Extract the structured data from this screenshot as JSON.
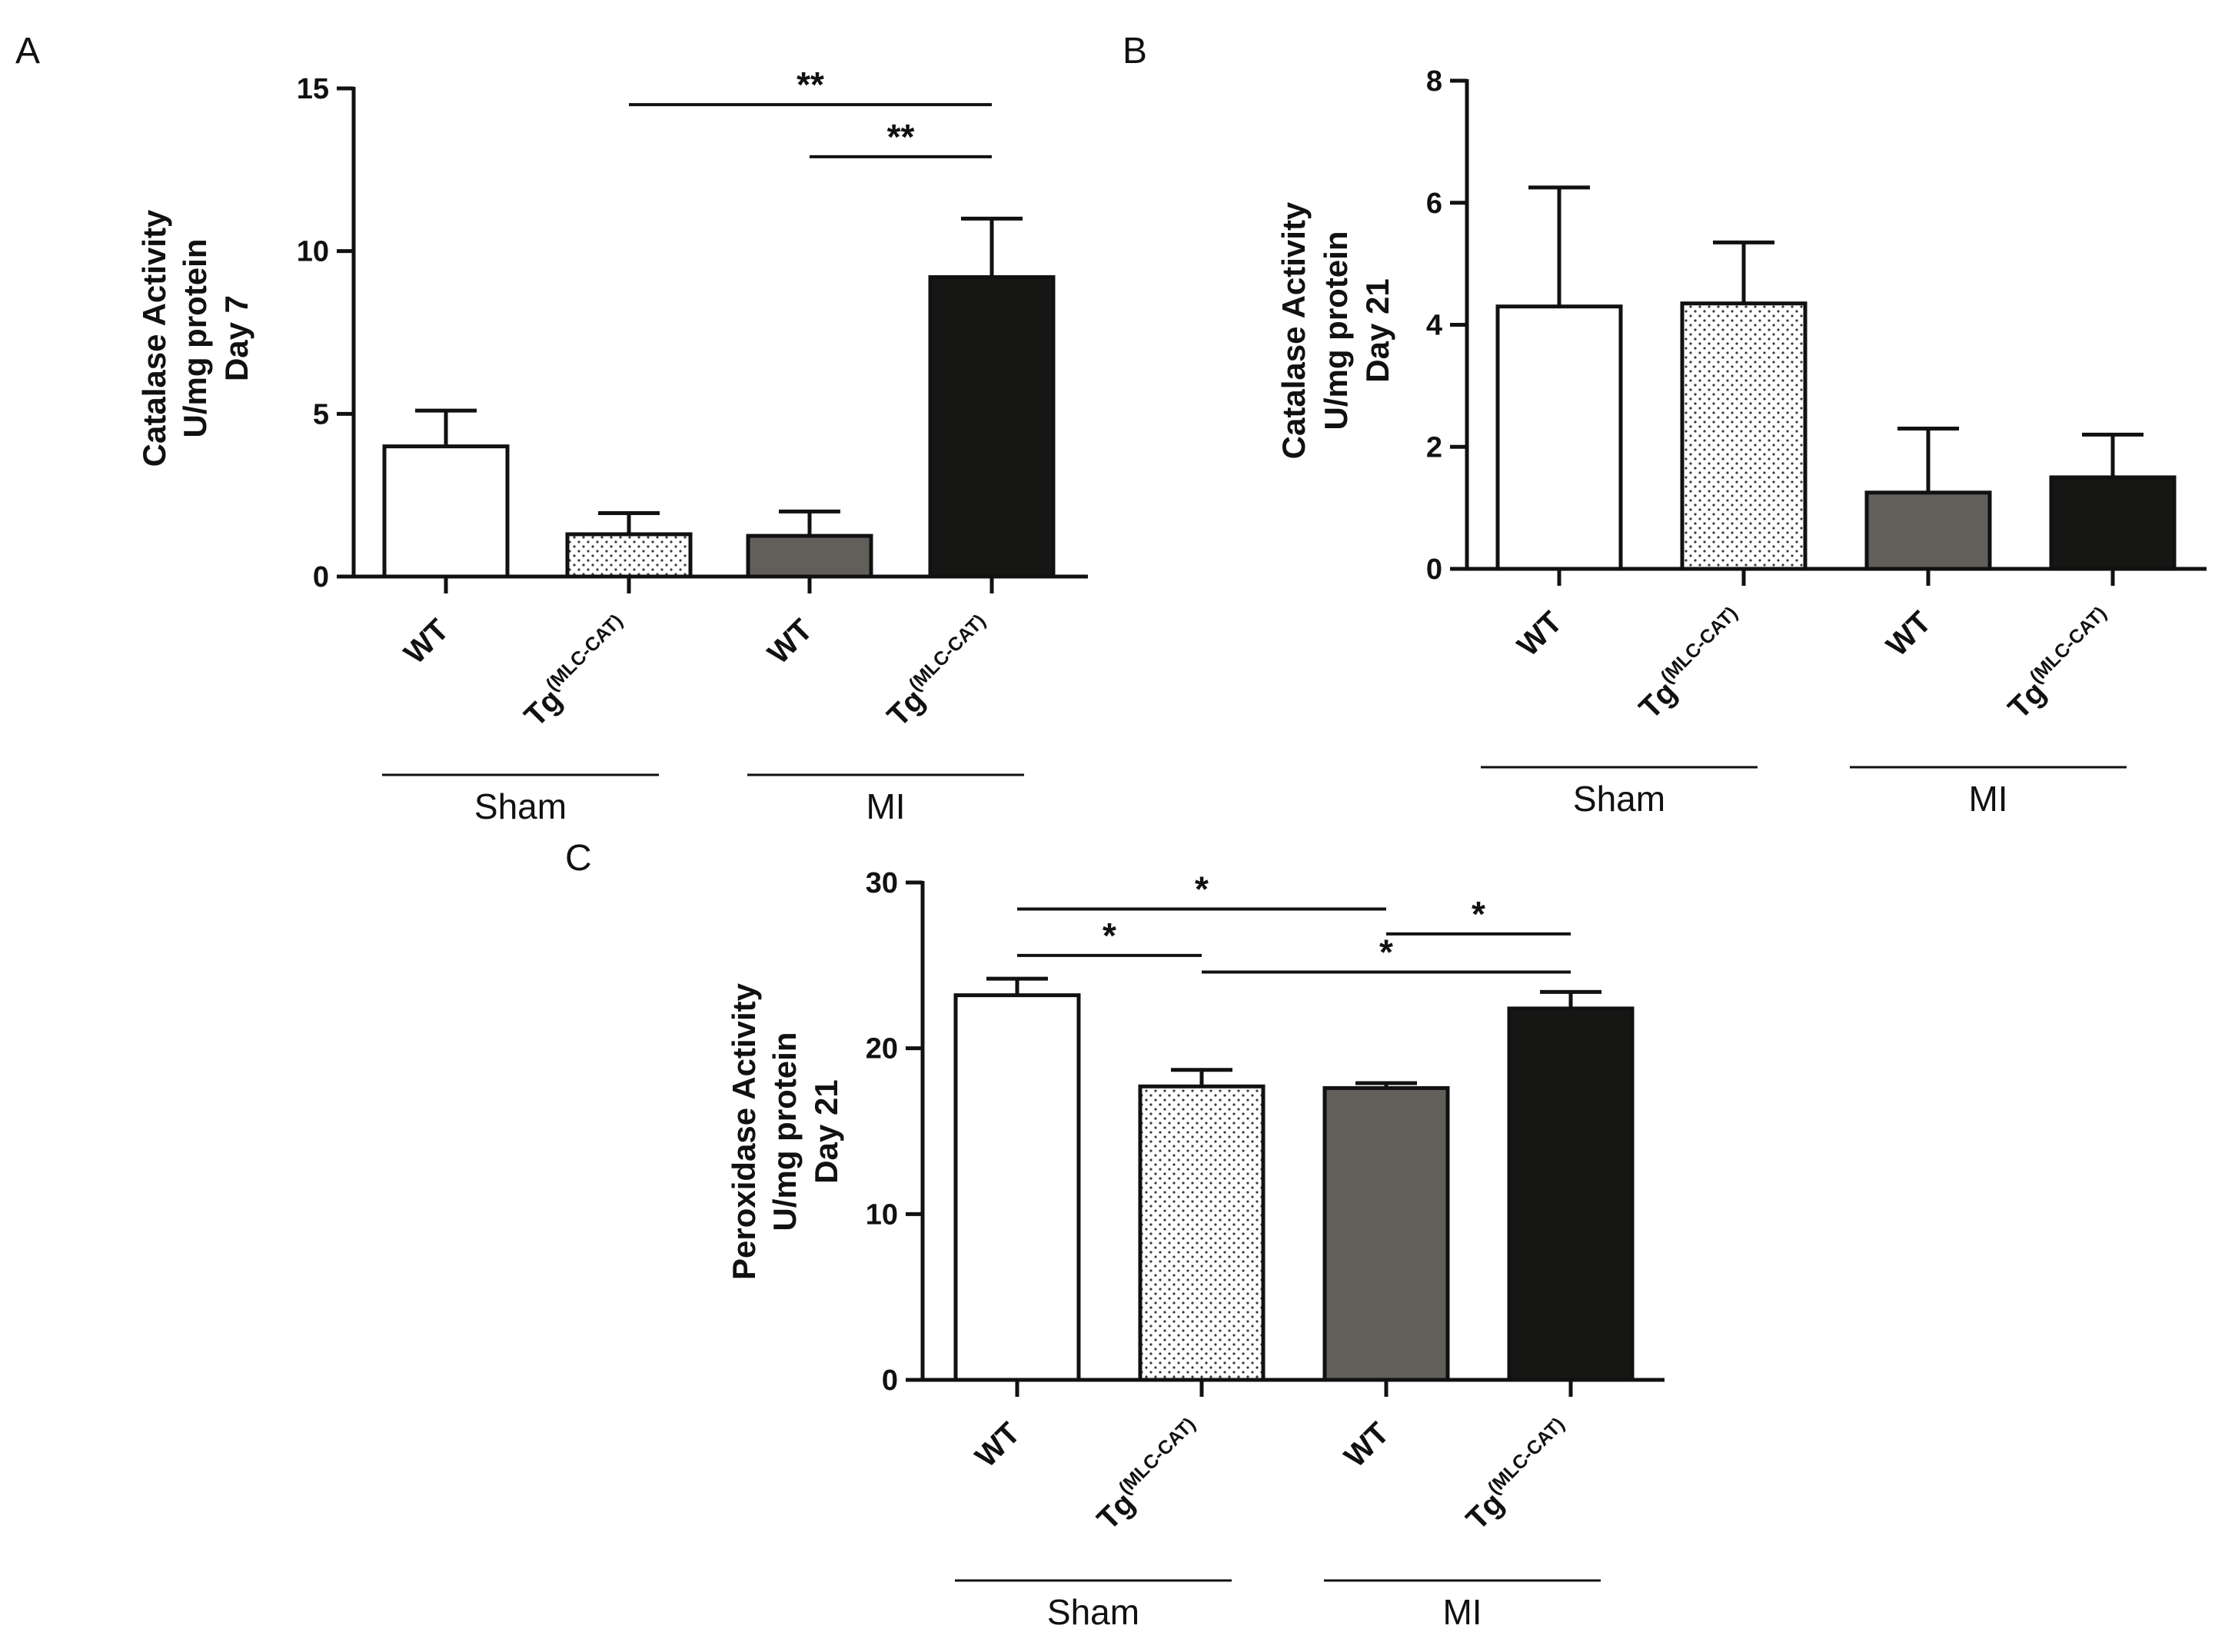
{
  "figure": {
    "colors": {
      "wt_sham": "#ffffff",
      "tg_sham": "#ffffff",
      "wt_mi": "#625e5a",
      "tg_mi": "#161614",
      "axis": "#111111",
      "dots": "#3a3a3a"
    }
  },
  "chart_data": [
    {
      "panel": "A",
      "type": "bar",
      "ylabel_lines": [
        "Catalase Activity",
        "U/mg protein",
        "Day 7"
      ],
      "ylim": [
        0,
        15
      ],
      "yticks": [
        0,
        5,
        10,
        15
      ],
      "categories": [
        {
          "name": "WT",
          "sup": ""
        },
        {
          "name": "Tg",
          "sup": "(MLC-CAT)"
        },
        {
          "name": "WT",
          "sup": ""
        },
        {
          "name": "Tg",
          "sup": "(MLC-CAT)"
        }
      ],
      "values": [
        4.0,
        1.3,
        1.25,
        9.2
      ],
      "errors": [
        1.1,
        0.65,
        0.75,
        1.8
      ],
      "fills": [
        "white",
        "dotted",
        "dark",
        "black"
      ],
      "groups": [
        {
          "label": "Sham",
          "from": 0,
          "to": 1
        },
        {
          "label": "MI",
          "from": 2,
          "to": 3
        }
      ],
      "significance": [
        {
          "from": 1,
          "to": 3,
          "label": "**",
          "y": 14.5
        },
        {
          "from": 2,
          "to": 3,
          "label": "**",
          "y": 12.9
        }
      ]
    },
    {
      "panel": "B",
      "type": "bar",
      "ylabel_lines": [
        "Catalase Activity",
        "U/mg protein",
        "Day 21"
      ],
      "ylim": [
        0,
        8
      ],
      "yticks": [
        0,
        2,
        4,
        6,
        8
      ],
      "categories": [
        {
          "name": "WT",
          "sup": ""
        },
        {
          "name": "Tg",
          "sup": "(MLC-CAT)"
        },
        {
          "name": "WT",
          "sup": ""
        },
        {
          "name": "Tg",
          "sup": "(MLC-CAT)"
        }
      ],
      "values": [
        4.3,
        4.35,
        1.25,
        1.5
      ],
      "errors": [
        1.95,
        1.0,
        1.05,
        0.7
      ],
      "fills": [
        "white",
        "dotted",
        "dark",
        "black"
      ],
      "groups": [
        {
          "label": "Sham",
          "from": 0,
          "to": 1
        },
        {
          "label": "MI",
          "from": 2,
          "to": 3
        }
      ],
      "significance": []
    },
    {
      "panel": "C",
      "type": "bar",
      "ylabel_lines": [
        "Peroxidase Activity",
        "U/mg protein",
        "Day 21"
      ],
      "ylim": [
        0,
        30
      ],
      "yticks": [
        0,
        10,
        20,
        30
      ],
      "categories": [
        {
          "name": "WT",
          "sup": ""
        },
        {
          "name": "Tg",
          "sup": "(MLC-CAT)"
        },
        {
          "name": "WT",
          "sup": ""
        },
        {
          "name": "Tg",
          "sup": "(MLC-CAT)"
        }
      ],
      "values": [
        23.2,
        17.7,
        17.6,
        22.4
      ],
      "errors": [
        1.0,
        1.0,
        0.3,
        1.0
      ],
      "fills": [
        "white",
        "dotted",
        "dark",
        "black"
      ],
      "groups": [
        {
          "label": "Sham",
          "from": 0,
          "to": 1
        },
        {
          "label": "MI",
          "from": 2,
          "to": 3
        }
      ],
      "significance": [
        {
          "from": 0,
          "to": 2,
          "label": "*",
          "y": 28.4
        },
        {
          "from": 0,
          "to": 1,
          "label": "*",
          "y": 25.6
        },
        {
          "from": 2,
          "to": 3,
          "label": "*",
          "y": 26.9
        },
        {
          "from": 1,
          "to": 3,
          "label": "*",
          "y": 24.6
        }
      ]
    }
  ]
}
